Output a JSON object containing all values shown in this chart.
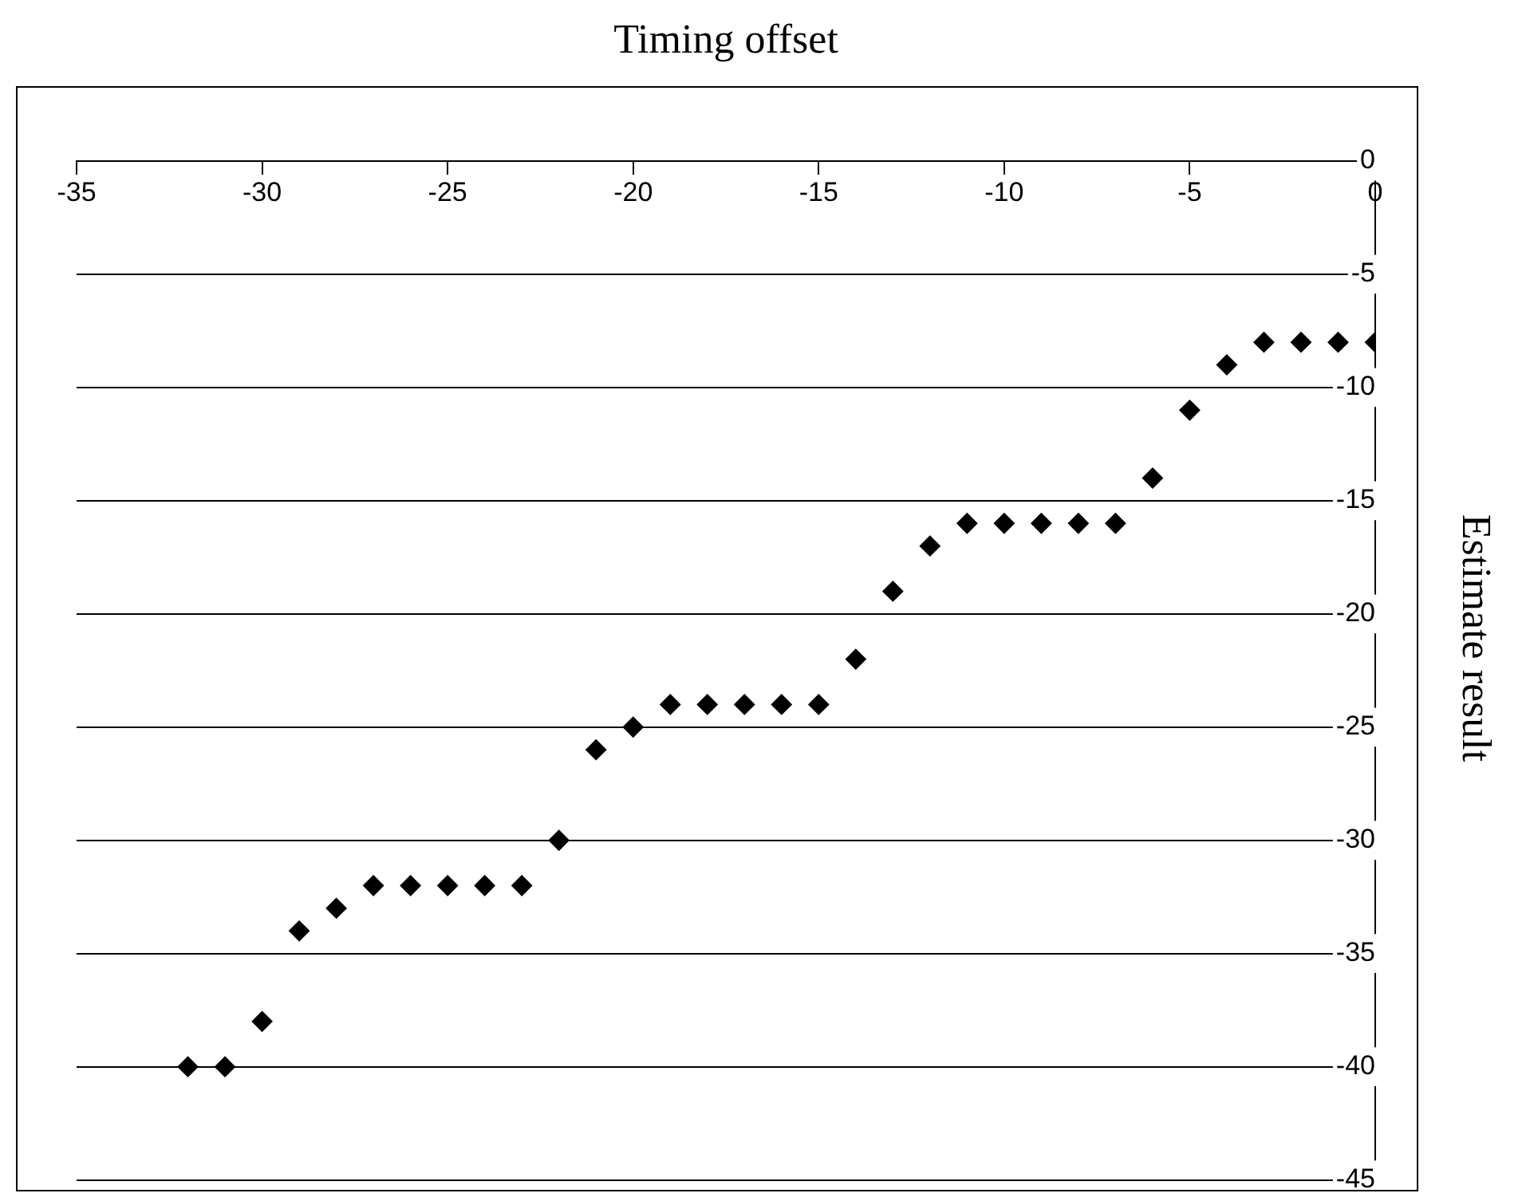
{
  "chart_data": {
    "type": "scatter",
    "xlabel": "Timing offset",
    "ylabel": "Estimate result",
    "x": [
      -32,
      -31,
      -30,
      -29,
      -28,
      -27,
      -26,
      -25,
      -24,
      -23,
      -22,
      -21,
      -20,
      -19,
      -18,
      -17,
      -16,
      -15,
      -14,
      -13,
      -12,
      -11,
      -10,
      -9,
      -8,
      -7,
      -6,
      -5,
      -4,
      -3,
      -2,
      -1,
      0
    ],
    "values": [
      -40,
      -40,
      -38,
      -34,
      -33,
      -32,
      -32,
      -32,
      -32,
      -32,
      -30,
      -26,
      -25,
      -24,
      -24,
      -24,
      -24,
      -24,
      -22,
      -19,
      -17,
      -16,
      -16,
      -16,
      -16,
      -16,
      -14,
      -11,
      -9,
      -8,
      -8,
      -8,
      -8
    ],
    "color": "#000000",
    "marker": "diamond",
    "xlim": [
      -35,
      0
    ],
    "ylim": [
      -45,
      0
    ],
    "xticks": [
      -35,
      -30,
      -25,
      -20,
      -15,
      -10,
      -5,
      0
    ],
    "yticks": [
      -45,
      -40,
      -35,
      -30,
      -25,
      -20,
      -15,
      -10,
      -5,
      0
    ],
    "grid": "y"
  }
}
